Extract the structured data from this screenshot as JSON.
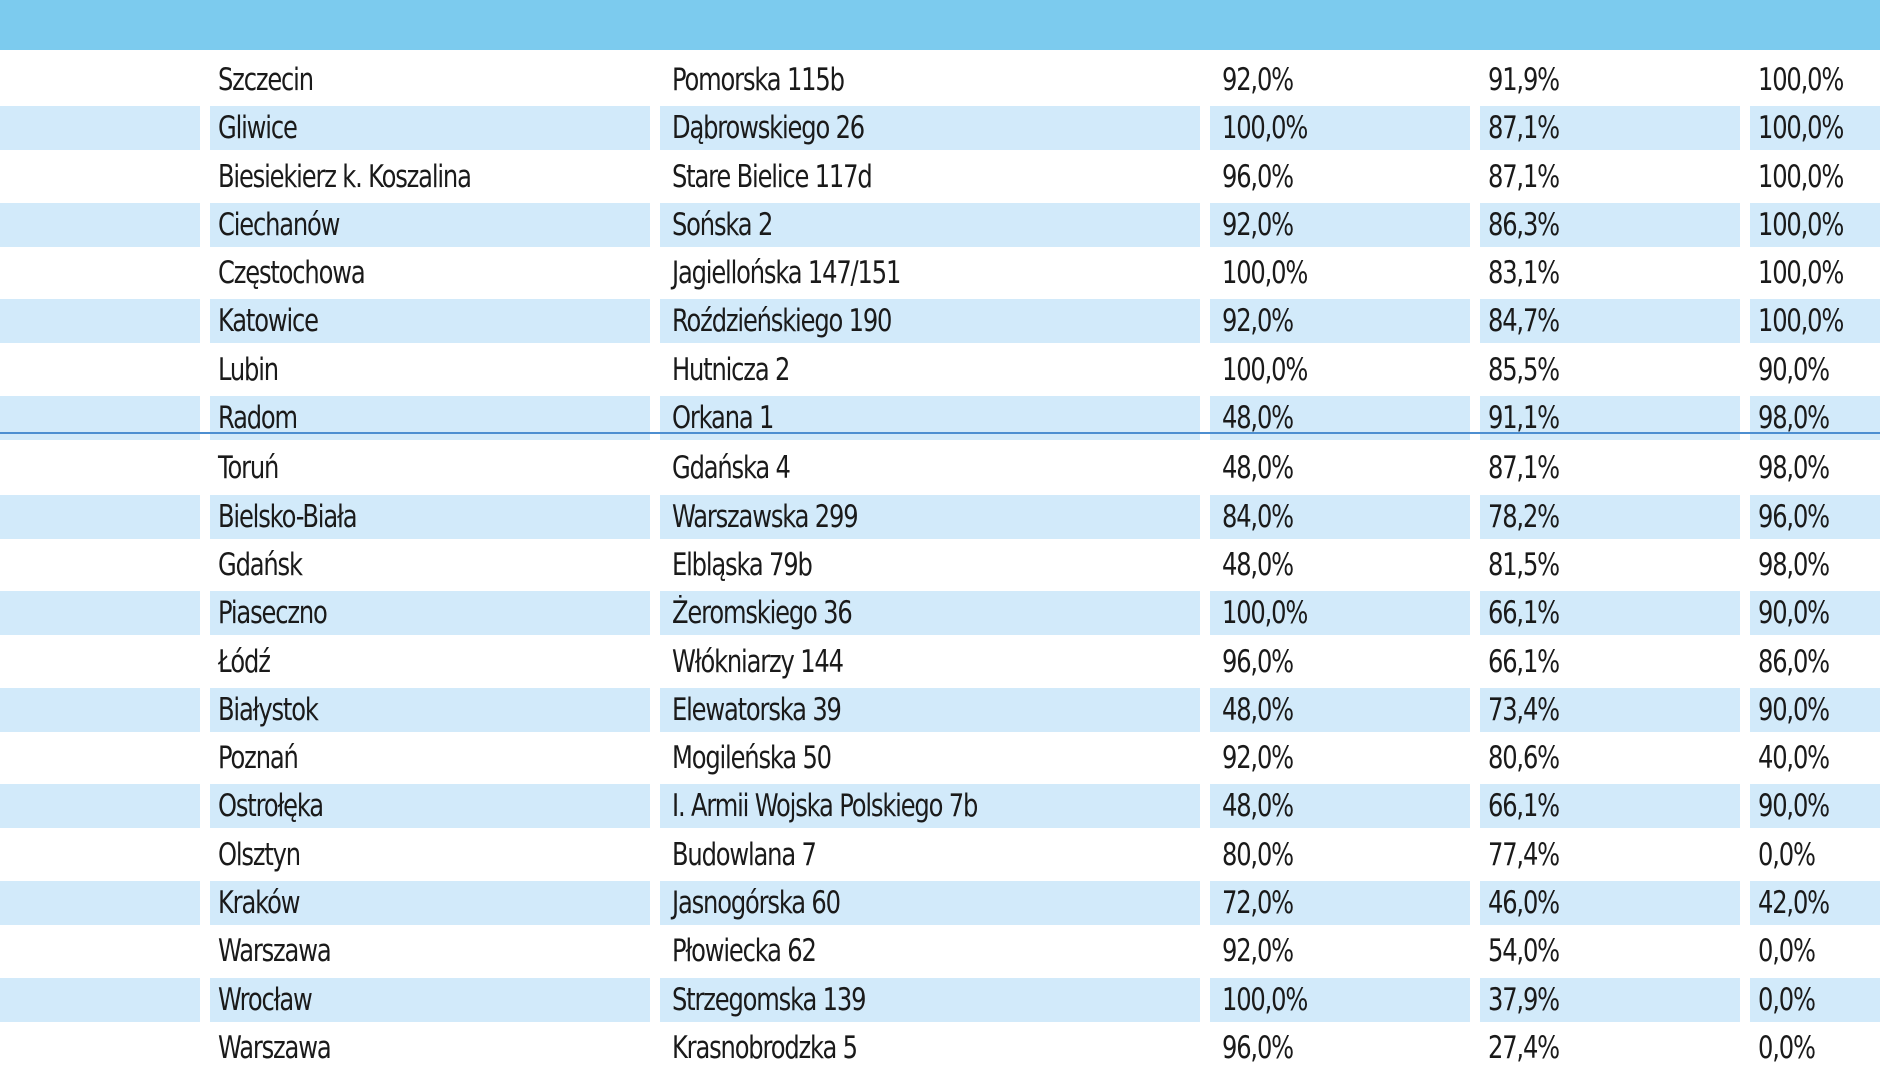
{
  "table": {
    "rows": [
      {
        "city": "Szczecin",
        "address": "Pomorska 115b",
        "v1": "92,0%",
        "v2": "91,9%",
        "v3": "100,0%"
      },
      {
        "city": "Gliwice",
        "address": "Dąbrowskiego 26",
        "v1": "100,0%",
        "v2": "87,1%",
        "v3": "100,0%"
      },
      {
        "city": "Biesiekierz k. Koszalina",
        "address": "Stare Bielice 117d",
        "v1": "96,0%",
        "v2": "87,1%",
        "v3": "100,0%"
      },
      {
        "city": "Ciechanów",
        "address": "Sońska 2",
        "v1": "92,0%",
        "v2": "86,3%",
        "v3": "100,0%"
      },
      {
        "city": "Częstochowa",
        "address": "Jagiellońska 147/151",
        "v1": "100,0%",
        "v2": "83,1%",
        "v3": "100,0%"
      },
      {
        "city": "Katowice",
        "address": "Roździeńskiego 190",
        "v1": "92,0%",
        "v2": "84,7%",
        "v3": "100,0%"
      },
      {
        "city": "Lubin",
        "address": "Hutnicza 2",
        "v1": "100,0%",
        "v2": "85,5%",
        "v3": "90,0%"
      },
      {
        "city": "Radom",
        "address": "Orkana 1",
        "v1": "48,0%",
        "v2": "91,1%",
        "v3": "98,0%"
      },
      {
        "city": "Toruń",
        "address": "Gdańska 4",
        "v1": "48,0%",
        "v2": "87,1%",
        "v3": "98,0%"
      },
      {
        "city": "Bielsko-Biała",
        "address": "Warszawska 299",
        "v1": "84,0%",
        "v2": "78,2%",
        "v3": "96,0%"
      },
      {
        "city": "Gdańsk",
        "address": "Elbląska 79b",
        "v1": "48,0%",
        "v2": "81,5%",
        "v3": "98,0%"
      },
      {
        "city": "Piaseczno",
        "address": "Żeromskiego 36",
        "v1": "100,0%",
        "v2": "66,1%",
        "v3": "90,0%"
      },
      {
        "city": "Łódź",
        "address": "Włókniarzy 144",
        "v1": "96,0%",
        "v2": "66,1%",
        "v3": "86,0%"
      },
      {
        "city": "Białystok",
        "address": "Elewatorska 39",
        "v1": "48,0%",
        "v2": "73,4%",
        "v3": "90,0%"
      },
      {
        "city": "Poznań",
        "address": "Mogileńska 50",
        "v1": "92,0%",
        "v2": "80,6%",
        "v3": "40,0%"
      },
      {
        "city": "Ostrołęka",
        "address": "I. Armii Wojska Polskiego 7b",
        "v1": "48,0%",
        "v2": "66,1%",
        "v3": "90,0%"
      },
      {
        "city": "Olsztyn",
        "address": "Budowlana 7",
        "v1": "80,0%",
        "v2": "77,4%",
        "v3": "0,0%"
      },
      {
        "city": "Kraków",
        "address": "Jasnogórska 60",
        "v1": "72,0%",
        "v2": "46,0%",
        "v3": "42,0%"
      },
      {
        "city": "Warszawa",
        "address": "Płowiecka 62",
        "v1": "92,0%",
        "v2": "54,0%",
        "v3": "0,0%"
      },
      {
        "city": "Wrocław",
        "address": "Strzegomska 139",
        "v1": "100,0%",
        "v2": "37,9%",
        "v3": "0,0%"
      },
      {
        "city": "Warszawa",
        "address": "Krasnobrodzka 5",
        "v1": "96,0%",
        "v2": "27,4%",
        "v3": "0,0%"
      }
    ]
  },
  "colors": {
    "header": "#7ccbee",
    "shade": "#d2eafa",
    "divider": "#4d8fd1"
  }
}
